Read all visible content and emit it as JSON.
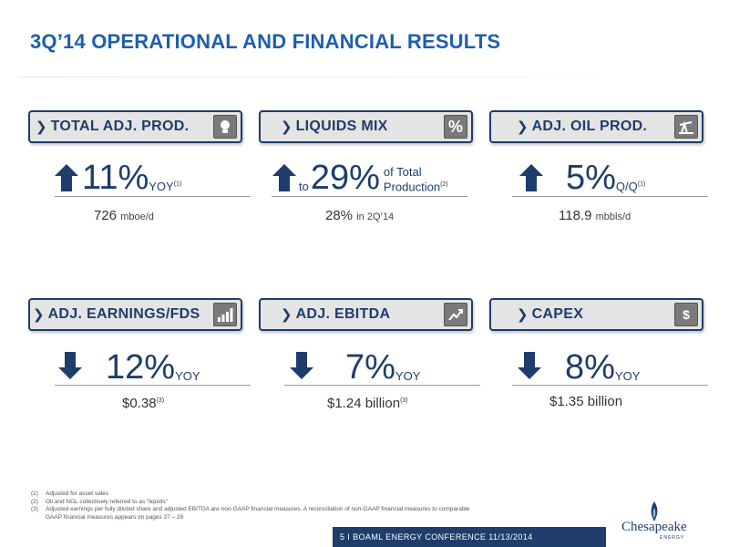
{
  "title": "3Q’14 OPERATIONAL AND FINANCIAL RESULTS",
  "cards": [
    {
      "label": "TOTAL ADJ. PROD.",
      "icon": "lightbulb-icon",
      "direction": "up",
      "pre": "",
      "value": "11%",
      "unit": "YOY",
      "unit_sup": "(1)",
      "sub_value": "726",
      "sub_unit": "mboe/d",
      "sub_sup": ""
    },
    {
      "label": "LIQUIDS MIX",
      "icon": "percent-icon",
      "direction": "up",
      "pre": "to",
      "value": "29%",
      "unit_line1": "of Total",
      "unit": "Production",
      "unit_sup": "(2)",
      "sub_value": "28%",
      "sub_unit": "in 2Q’14",
      "sub_sup": ""
    },
    {
      "label": "ADJ. OIL PROD.",
      "icon": "oil-pump-icon",
      "direction": "up",
      "pre": "",
      "value": "5%",
      "unit": "Q/Q",
      "unit_sup": "(1)",
      "sub_value": "118.9",
      "sub_unit": "mbbls/d",
      "sub_sup": ""
    },
    {
      "label": "ADJ. EARNINGS/FDS",
      "icon": "bar-chart-icon",
      "direction": "down",
      "pre": "",
      "value": "12%",
      "unit": "YOY",
      "unit_sup": "",
      "sub_value": "$0.38",
      "sub_unit": "",
      "sub_sup": "(3)"
    },
    {
      "label": "ADJ. EBITDA",
      "icon": "trend-icon",
      "direction": "down",
      "pre": "",
      "value": "7%",
      "unit": "YOY",
      "unit_sup": "",
      "sub_value": "$1.24 billion",
      "sub_unit": "",
      "sub_sup": "(3)"
    },
    {
      "label": "CAPEX",
      "icon": "invoice-icon",
      "direction": "down",
      "pre": "",
      "value": "8%",
      "unit": "YOY",
      "unit_sup": "",
      "sub_value": "$1.35 billion",
      "sub_unit": "",
      "sub_sup": ""
    }
  ],
  "icon_glyphs": {
    "percent": "%",
    "invoice": "$"
  },
  "footnotes": [
    {
      "num": "(1)",
      "text": "Adjusted for asset sales"
    },
    {
      "num": "(2)",
      "text": "Oil and NGL collectively referred to as “liquids”"
    },
    {
      "num": "(3)",
      "text": "Adjusted earnings per fully diluted share and adjusted EBITDA are non-GAAP financial measures. A reconciliation of non-GAAP financial measures to comparable"
    },
    {
      "num": "",
      "text": "GAAP financial measures appears on pages 27 – 28"
    }
  ],
  "footer": {
    "text": "5  I  BOAML ENERGY CONFERENCE  11/13/2014"
  },
  "logo": {
    "name": "Chesapeake",
    "sub": "ENERGY"
  },
  "colors": {
    "brand": "#1e3d6b",
    "title": "#1e5fae",
    "header_bg": "#e4e4e4"
  }
}
